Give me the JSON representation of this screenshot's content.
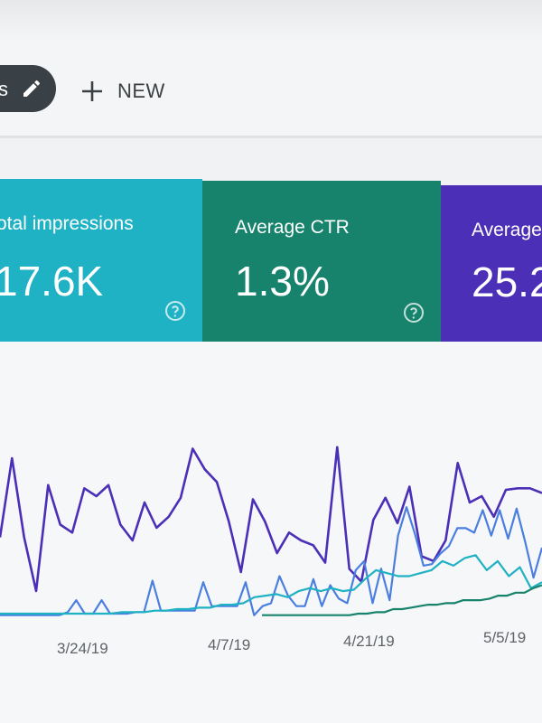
{
  "toolbar": {
    "pill_text": "s",
    "pill_icon": "pencil-icon",
    "new_label": "NEW",
    "new_icon": "plus-icon"
  },
  "cards": [
    {
      "label": "otal impressions",
      "value": "17.6K",
      "color": "#1fb1c4",
      "help_icon": "help-circle-icon"
    },
    {
      "label": "Average CTR",
      "value": "1.3%",
      "color": "#17836c",
      "help_icon": "help-circle-icon"
    },
    {
      "label": "Average p",
      "value": "25.2",
      "color": "#4b2fb6"
    }
  ],
  "chart_data": {
    "type": "line",
    "x_tick_labels": [
      "3/24/19",
      "4/7/19",
      "4/21/19",
      "5/5/19"
    ],
    "grid": false,
    "series": [
      {
        "color": "#4b2fb6",
        "values": [
          42,
          92,
          42,
          8,
          75,
          50,
          45,
          73,
          68,
          75,
          50,
          40,
          64,
          48,
          55,
          67,
          98,
          85,
          77,
          52,
          20,
          66,
          52,
          32,
          45,
          40,
          37,
          26,
          99,
          22,
          14,
          53,
          67,
          51,
          74,
          30,
          27,
          40,
          89,
          64,
          68,
          55,
          72,
          73,
          73,
          70
        ]
      },
      {
        "color": "#4a7fe0",
        "values": [
          2,
          2,
          2,
          2,
          2,
          2,
          2,
          2,
          4,
          12,
          3,
          3,
          12,
          3,
          3,
          3,
          4,
          4,
          25,
          5,
          5,
          5,
          5,
          5,
          24,
          8,
          8,
          8,
          8,
          24,
          2,
          8,
          10,
          28,
          15,
          8,
          8,
          26,
          8,
          22,
          13,
          10,
          32,
          38,
          10,
          33,
          12,
          55,
          74,
          56,
          35,
          36,
          43,
          48,
          60,
          60,
          57,
          72,
          55,
          72,
          53,
          73,
          51,
          27,
          47
        ]
      },
      {
        "color": "#1fb1c4",
        "values": [
          3,
          3,
          3,
          3,
          3,
          3,
          3,
          3,
          3,
          3,
          3,
          4,
          4,
          4,
          5,
          5,
          6,
          6,
          7,
          7,
          9,
          9,
          10,
          14,
          15,
          16,
          14,
          18,
          20,
          18,
          20,
          18,
          19,
          26,
          32,
          30,
          28,
          28,
          30,
          32,
          38,
          35,
          40,
          42,
          32,
          38,
          28,
          34,
          20,
          24
        ]
      },
      {
        "color": "#17836c",
        "values": [
          2,
          2,
          2,
          2,
          2,
          2,
          2,
          2,
          2,
          2,
          2,
          3,
          3,
          4,
          4,
          6,
          6,
          7,
          8,
          9,
          9,
          10,
          10,
          12,
          12,
          12,
          13,
          15,
          15,
          17,
          17,
          20,
          22
        ]
      }
    ]
  }
}
